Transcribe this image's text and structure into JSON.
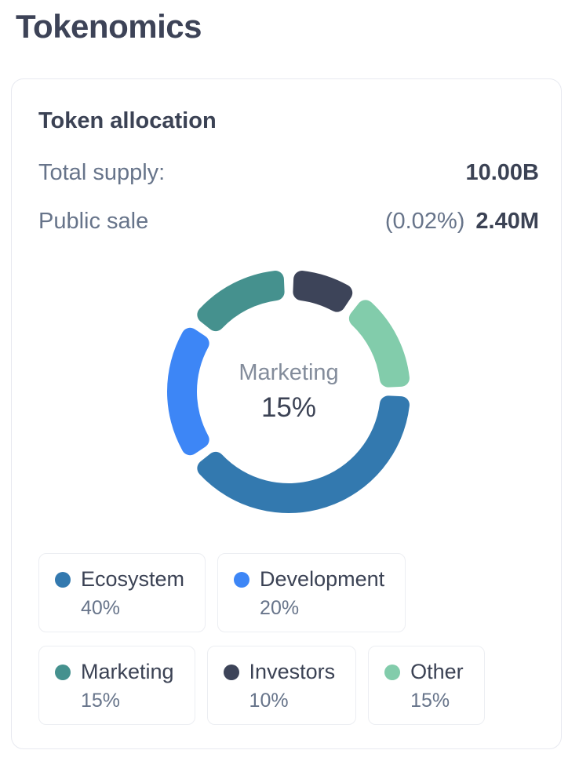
{
  "page": {
    "title": "Tokenomics"
  },
  "card": {
    "title": "Token allocation",
    "supply_rows": [
      {
        "label": "Total supply:",
        "pct": "",
        "value": "10.00B"
      },
      {
        "label": "Public sale",
        "pct": "(0.02%)",
        "value": "2.40M"
      }
    ]
  },
  "chart_data": {
    "type": "pie",
    "variant": "donut",
    "title": "Token allocation",
    "direction": "clockwise",
    "start_angle_deg": 90,
    "segments": [
      {
        "label": "Ecosystem",
        "value_pct": 40,
        "pct_label": "40%",
        "color": "#3379AF"
      },
      {
        "label": "Development",
        "value_pct": 20,
        "pct_label": "20%",
        "color": "#3D86F6"
      },
      {
        "label": "Marketing",
        "value_pct": 15,
        "pct_label": "15%",
        "color": "#45918E"
      },
      {
        "label": "Investors",
        "value_pct": 10,
        "pct_label": "10%",
        "color": "#3D4459"
      },
      {
        "label": "Other",
        "value_pct": 15,
        "pct_label": "15%",
        "color": "#82CCAB"
      }
    ],
    "center_label": {
      "name": "Marketing",
      "value": "15%"
    },
    "legend_position": "bottom",
    "colors": {
      "heading_text": "#3B4254",
      "muted_text": "#67748A"
    }
  }
}
